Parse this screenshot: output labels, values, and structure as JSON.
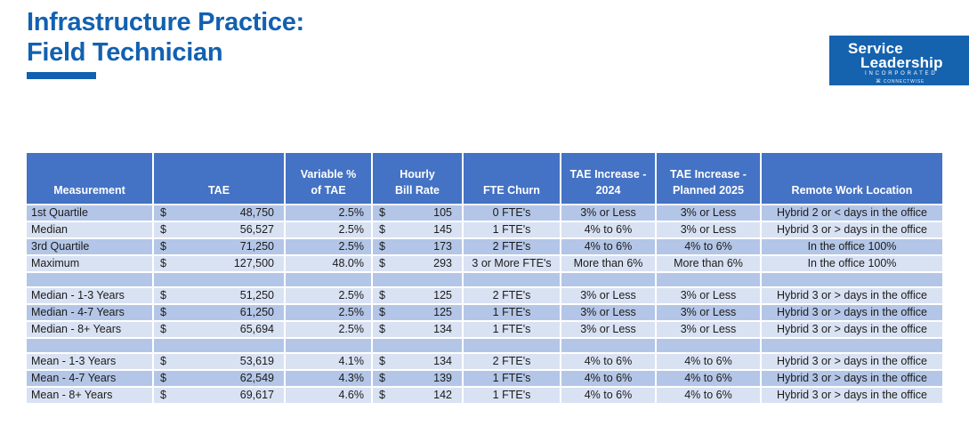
{
  "title": {
    "line1": "Infrastructure Practice:",
    "line2": "Field Technician"
  },
  "logo": {
    "line1": "Service",
    "line2": "Leadership",
    "line3": "INCORPORATED",
    "glyph": "⌘",
    "line4": "CONNECTWISE"
  },
  "colors": {
    "title_blue": "#1261B0",
    "logo_bg": "#1562AE",
    "header_blue": "#4472C4",
    "row_dark": "#B4C6E7",
    "row_light": "#D9E2F3"
  },
  "table": {
    "currency": "$",
    "columns": [
      {
        "id": "measurement",
        "label": "Measurement"
      },
      {
        "id": "tae",
        "label": "TAE"
      },
      {
        "id": "variable_pct",
        "label": "Variable %\nof TAE"
      },
      {
        "id": "bill_rate",
        "label": "Hourly\nBill Rate"
      },
      {
        "id": "fte_churn",
        "label": "FTE Churn"
      },
      {
        "id": "tae_increase_2024",
        "label": "TAE Increase -\n2024"
      },
      {
        "id": "tae_increase_2025",
        "label": "TAE Increase -\nPlanned 2025"
      },
      {
        "id": "remote",
        "label": "Remote Work Location"
      }
    ],
    "rows": [
      {
        "type": "data",
        "shade": "dark",
        "measurement": "1st Quartile",
        "tae": "48,750",
        "variable_pct": "2.5%",
        "bill_rate": "105",
        "fte_churn": "0 FTE's",
        "tae_increase_2024": "3% or Less",
        "tae_increase_2025": "3% or Less",
        "remote": "Hybrid 2 or < days in the office"
      },
      {
        "type": "data",
        "shade": "light",
        "measurement": "Median",
        "tae": "56,527",
        "variable_pct": "2.5%",
        "bill_rate": "145",
        "fte_churn": "1 FTE's",
        "tae_increase_2024": "4% to 6%",
        "tae_increase_2025": "3% or Less",
        "remote": "Hybrid 3 or > days in the office"
      },
      {
        "type": "data",
        "shade": "dark",
        "measurement": "3rd Quartile",
        "tae": "71,250",
        "variable_pct": "2.5%",
        "bill_rate": "173",
        "fte_churn": "2 FTE's",
        "tae_increase_2024": "4% to 6%",
        "tae_increase_2025": "4% to 6%",
        "remote": "In the office 100%"
      },
      {
        "type": "data",
        "shade": "light",
        "measurement": "Maximum",
        "tae": "127,500",
        "variable_pct": "48.0%",
        "bill_rate": "293",
        "fte_churn": "3 or More FTE's",
        "tae_increase_2024": "More than 6%",
        "tae_increase_2025": "More than 6%",
        "remote": "In the office 100%"
      },
      {
        "type": "blank",
        "shade": "dark"
      },
      {
        "type": "data",
        "shade": "light",
        "measurement": "Median - 1-3 Years",
        "tae": "51,250",
        "variable_pct": "2.5%",
        "bill_rate": "125",
        "fte_churn": "2 FTE's",
        "tae_increase_2024": "3% or Less",
        "tae_increase_2025": "3% or Less",
        "remote": "Hybrid 3 or > days in the office"
      },
      {
        "type": "data",
        "shade": "dark",
        "measurement": "Median - 4-7 Years",
        "tae": "61,250",
        "variable_pct": "2.5%",
        "bill_rate": "125",
        "fte_churn": "1 FTE's",
        "tae_increase_2024": "3% or Less",
        "tae_increase_2025": "3% or Less",
        "remote": "Hybrid 3 or > days in the office"
      },
      {
        "type": "data",
        "shade": "light",
        "measurement": "Median - 8+ Years",
        "tae": "65,694",
        "variable_pct": "2.5%",
        "bill_rate": "134",
        "fte_churn": "1 FTE's",
        "tae_increase_2024": "3% or Less",
        "tae_increase_2025": "3% or Less",
        "remote": "Hybrid 3 or > days in the office"
      },
      {
        "type": "blank",
        "shade": "dark"
      },
      {
        "type": "data",
        "shade": "light",
        "measurement": "Mean - 1-3 Years",
        "tae": "53,619",
        "variable_pct": "4.1%",
        "bill_rate": "134",
        "fte_churn": "2 FTE's",
        "tae_increase_2024": "4% to 6%",
        "tae_increase_2025": "4% to 6%",
        "remote": "Hybrid 3 or > days in the office"
      },
      {
        "type": "data",
        "shade": "dark",
        "measurement": "Mean - 4-7 Years",
        "tae": "62,549",
        "variable_pct": "4.3%",
        "bill_rate": "139",
        "fte_churn": "1 FTE's",
        "tae_increase_2024": "4% to 6%",
        "tae_increase_2025": "4% to 6%",
        "remote": "Hybrid 3 or > days in the office"
      },
      {
        "type": "data",
        "shade": "light",
        "measurement": "Mean - 8+ Years",
        "tae": "69,617",
        "variable_pct": "4.6%",
        "bill_rate": "142",
        "fte_churn": "1 FTE's",
        "tae_increase_2024": "4% to 6%",
        "tae_increase_2025": "4% to 6%",
        "remote": "Hybrid 3 or > days in the office"
      }
    ]
  }
}
